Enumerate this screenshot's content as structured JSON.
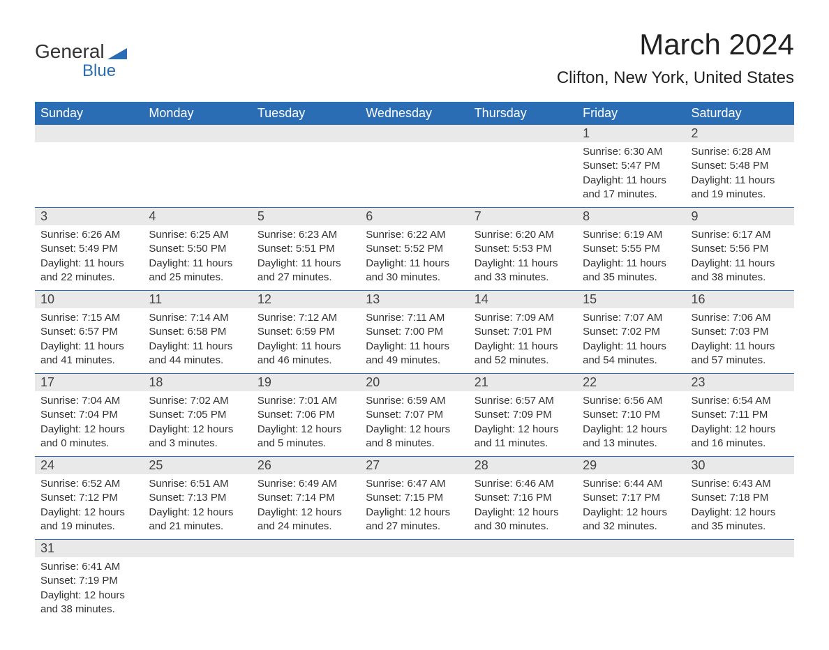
{
  "logo": {
    "word1": "General",
    "word2": "Blue",
    "icon_color": "#2a6db4"
  },
  "title": "March 2024",
  "location": "Clifton, New York, United States",
  "colors": {
    "header_bg": "#2a6db4",
    "header_text": "#ffffff",
    "daynum_bg": "#e9e9e9",
    "row_divider": "#2a6db4",
    "text": "#333333",
    "background": "#ffffff"
  },
  "typography": {
    "title_fontsize": 42,
    "location_fontsize": 24,
    "dayheader_fontsize": 18,
    "daynum_fontsize": 18,
    "detail_fontsize": 15,
    "font_family": "Arial"
  },
  "day_headers": [
    "Sunday",
    "Monday",
    "Tuesday",
    "Wednesday",
    "Thursday",
    "Friday",
    "Saturday"
  ],
  "weeks": [
    [
      null,
      null,
      null,
      null,
      null,
      {
        "n": "1",
        "sunrise": "Sunrise: 6:30 AM",
        "sunset": "Sunset: 5:47 PM",
        "d1": "Daylight: 11 hours",
        "d2": "and 17 minutes."
      },
      {
        "n": "2",
        "sunrise": "Sunrise: 6:28 AM",
        "sunset": "Sunset: 5:48 PM",
        "d1": "Daylight: 11 hours",
        "d2": "and 19 minutes."
      }
    ],
    [
      {
        "n": "3",
        "sunrise": "Sunrise: 6:26 AM",
        "sunset": "Sunset: 5:49 PM",
        "d1": "Daylight: 11 hours",
        "d2": "and 22 minutes."
      },
      {
        "n": "4",
        "sunrise": "Sunrise: 6:25 AM",
        "sunset": "Sunset: 5:50 PM",
        "d1": "Daylight: 11 hours",
        "d2": "and 25 minutes."
      },
      {
        "n": "5",
        "sunrise": "Sunrise: 6:23 AM",
        "sunset": "Sunset: 5:51 PM",
        "d1": "Daylight: 11 hours",
        "d2": "and 27 minutes."
      },
      {
        "n": "6",
        "sunrise": "Sunrise: 6:22 AM",
        "sunset": "Sunset: 5:52 PM",
        "d1": "Daylight: 11 hours",
        "d2": "and 30 minutes."
      },
      {
        "n": "7",
        "sunrise": "Sunrise: 6:20 AM",
        "sunset": "Sunset: 5:53 PM",
        "d1": "Daylight: 11 hours",
        "d2": "and 33 minutes."
      },
      {
        "n": "8",
        "sunrise": "Sunrise: 6:19 AM",
        "sunset": "Sunset: 5:55 PM",
        "d1": "Daylight: 11 hours",
        "d2": "and 35 minutes."
      },
      {
        "n": "9",
        "sunrise": "Sunrise: 6:17 AM",
        "sunset": "Sunset: 5:56 PM",
        "d1": "Daylight: 11 hours",
        "d2": "and 38 minutes."
      }
    ],
    [
      {
        "n": "10",
        "sunrise": "Sunrise: 7:15 AM",
        "sunset": "Sunset: 6:57 PM",
        "d1": "Daylight: 11 hours",
        "d2": "and 41 minutes."
      },
      {
        "n": "11",
        "sunrise": "Sunrise: 7:14 AM",
        "sunset": "Sunset: 6:58 PM",
        "d1": "Daylight: 11 hours",
        "d2": "and 44 minutes."
      },
      {
        "n": "12",
        "sunrise": "Sunrise: 7:12 AM",
        "sunset": "Sunset: 6:59 PM",
        "d1": "Daylight: 11 hours",
        "d2": "and 46 minutes."
      },
      {
        "n": "13",
        "sunrise": "Sunrise: 7:11 AM",
        "sunset": "Sunset: 7:00 PM",
        "d1": "Daylight: 11 hours",
        "d2": "and 49 minutes."
      },
      {
        "n": "14",
        "sunrise": "Sunrise: 7:09 AM",
        "sunset": "Sunset: 7:01 PM",
        "d1": "Daylight: 11 hours",
        "d2": "and 52 minutes."
      },
      {
        "n": "15",
        "sunrise": "Sunrise: 7:07 AM",
        "sunset": "Sunset: 7:02 PM",
        "d1": "Daylight: 11 hours",
        "d2": "and 54 minutes."
      },
      {
        "n": "16",
        "sunrise": "Sunrise: 7:06 AM",
        "sunset": "Sunset: 7:03 PM",
        "d1": "Daylight: 11 hours",
        "d2": "and 57 minutes."
      }
    ],
    [
      {
        "n": "17",
        "sunrise": "Sunrise: 7:04 AM",
        "sunset": "Sunset: 7:04 PM",
        "d1": "Daylight: 12 hours",
        "d2": "and 0 minutes."
      },
      {
        "n": "18",
        "sunrise": "Sunrise: 7:02 AM",
        "sunset": "Sunset: 7:05 PM",
        "d1": "Daylight: 12 hours",
        "d2": "and 3 minutes."
      },
      {
        "n": "19",
        "sunrise": "Sunrise: 7:01 AM",
        "sunset": "Sunset: 7:06 PM",
        "d1": "Daylight: 12 hours",
        "d2": "and 5 minutes."
      },
      {
        "n": "20",
        "sunrise": "Sunrise: 6:59 AM",
        "sunset": "Sunset: 7:07 PM",
        "d1": "Daylight: 12 hours",
        "d2": "and 8 minutes."
      },
      {
        "n": "21",
        "sunrise": "Sunrise: 6:57 AM",
        "sunset": "Sunset: 7:09 PM",
        "d1": "Daylight: 12 hours",
        "d2": "and 11 minutes."
      },
      {
        "n": "22",
        "sunrise": "Sunrise: 6:56 AM",
        "sunset": "Sunset: 7:10 PM",
        "d1": "Daylight: 12 hours",
        "d2": "and 13 minutes."
      },
      {
        "n": "23",
        "sunrise": "Sunrise: 6:54 AM",
        "sunset": "Sunset: 7:11 PM",
        "d1": "Daylight: 12 hours",
        "d2": "and 16 minutes."
      }
    ],
    [
      {
        "n": "24",
        "sunrise": "Sunrise: 6:52 AM",
        "sunset": "Sunset: 7:12 PM",
        "d1": "Daylight: 12 hours",
        "d2": "and 19 minutes."
      },
      {
        "n": "25",
        "sunrise": "Sunrise: 6:51 AM",
        "sunset": "Sunset: 7:13 PM",
        "d1": "Daylight: 12 hours",
        "d2": "and 21 minutes."
      },
      {
        "n": "26",
        "sunrise": "Sunrise: 6:49 AM",
        "sunset": "Sunset: 7:14 PM",
        "d1": "Daylight: 12 hours",
        "d2": "and 24 minutes."
      },
      {
        "n": "27",
        "sunrise": "Sunrise: 6:47 AM",
        "sunset": "Sunset: 7:15 PM",
        "d1": "Daylight: 12 hours",
        "d2": "and 27 minutes."
      },
      {
        "n": "28",
        "sunrise": "Sunrise: 6:46 AM",
        "sunset": "Sunset: 7:16 PM",
        "d1": "Daylight: 12 hours",
        "d2": "and 30 minutes."
      },
      {
        "n": "29",
        "sunrise": "Sunrise: 6:44 AM",
        "sunset": "Sunset: 7:17 PM",
        "d1": "Daylight: 12 hours",
        "d2": "and 32 minutes."
      },
      {
        "n": "30",
        "sunrise": "Sunrise: 6:43 AM",
        "sunset": "Sunset: 7:18 PM",
        "d1": "Daylight: 12 hours",
        "d2": "and 35 minutes."
      }
    ],
    [
      {
        "n": "31",
        "sunrise": "Sunrise: 6:41 AM",
        "sunset": "Sunset: 7:19 PM",
        "d1": "Daylight: 12 hours",
        "d2": "and 38 minutes."
      },
      null,
      null,
      null,
      null,
      null,
      null
    ]
  ]
}
